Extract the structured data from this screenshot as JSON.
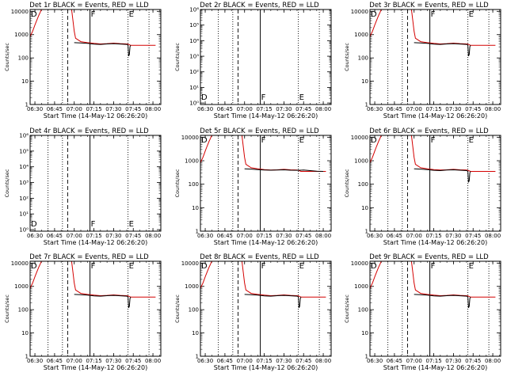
{
  "figure": {
    "xtick_labels": [
      "06:30",
      "06:45",
      "07:00",
      "07:15",
      "07:30",
      "07:45",
      "08:00"
    ],
    "xlabel": "Start Time (14-May-12 06:26:20)",
    "ylabel": "Counts/sec",
    "colors": {
      "events": "#000000",
      "lld": "#d40000"
    },
    "time_range": [
      "06:26:20",
      "08:06:00"
    ],
    "markers": {
      "dotted": [
        "06:40",
        "06:51",
        "07:41",
        "07:57"
      ],
      "dashed": [
        "06:55"
      ],
      "solid": [
        "07:12"
      ]
    }
  },
  "chart_data": [
    {
      "type": "line",
      "title": "Det 1r BLACK = Events, RED = LLD",
      "yscale": "log",
      "ylim": [
        1,
        12000
      ],
      "ytick_labels": [
        "1",
        "10",
        "100",
        "1000",
        "10000"
      ],
      "letters": [
        "D",
        "F",
        "E"
      ],
      "has_data": true,
      "series": [
        {
          "color": "#d40000",
          "x": [
            "06:26:20",
            "06:27",
            "06:28",
            "06:29",
            "06:30",
            "06:31",
            "06:32",
            "06:33",
            "06:34",
            "06:35",
            "06:36",
            "06:37",
            "06:38",
            "06:58",
            "06:59",
            "07:00",
            "07:01",
            "07:05",
            "07:10",
            "07:15",
            "07:20",
            "07:25",
            "07:30",
            "07:35",
            "07:40",
            "07:41:30",
            "07:43",
            "07:46",
            "07:50",
            "07:55",
            "08:00",
            "08:02"
          ],
          "y": [
            800,
            1000,
            1300,
            1800,
            2600,
            3600,
            5000,
            6800,
            9000,
            12000,
            12000,
            12000,
            12000,
            12000,
            4000,
            1400,
            700,
            500,
            450,
            420,
            400,
            410,
            430,
            410,
            400,
            380,
            350,
            350,
            350,
            350,
            350,
            350
          ]
        },
        {
          "color": "#000000",
          "x": [
            "07:00",
            "07:05",
            "07:10",
            "07:15",
            "07:20",
            "07:25",
            "07:30",
            "07:35",
            "07:40",
            "07:41",
            "07:41:30",
            "07:42",
            "07:42:30",
            "07:43"
          ],
          "y": [
            450,
            440,
            420,
            390,
            380,
            400,
            410,
            395,
            380,
            360,
            120,
            140,
            300,
            350
          ]
        }
      ]
    },
    {
      "type": "line",
      "title": "Det 2r BLACK = Events, RED = LLD",
      "yscale": "log",
      "ylim": [
        0.8,
        1000000
      ],
      "ytick_labels": [
        "10⁰",
        "10¹",
        "10²",
        "10³",
        "10⁴",
        "10⁵",
        "10⁶"
      ],
      "letters": [
        "D",
        "F",
        "E"
      ],
      "has_data": false,
      "series": []
    },
    {
      "type": "line",
      "title": "Det 3r BLACK = Events, RED = LLD",
      "yscale": "log",
      "ylim": [
        1,
        12000
      ],
      "ytick_labels": [
        "1",
        "10",
        "100",
        "1000",
        "10000"
      ],
      "letters": [
        "D",
        "F",
        "E"
      ],
      "has_data": true,
      "series": [
        {
          "color": "#d40000",
          "x": [
            "06:26:20",
            "06:27",
            "06:28",
            "06:29",
            "06:30",
            "06:31",
            "06:32",
            "06:33",
            "06:34",
            "06:35",
            "06:36",
            "06:37",
            "06:38",
            "06:58",
            "06:59",
            "07:00",
            "07:01",
            "07:05",
            "07:10",
            "07:15",
            "07:20",
            "07:25",
            "07:30",
            "07:35",
            "07:40",
            "07:41:30",
            "07:43",
            "07:46",
            "07:50",
            "07:55",
            "08:00",
            "08:02"
          ],
          "y": [
            800,
            1000,
            1300,
            1800,
            2600,
            3600,
            5000,
            6800,
            9000,
            12000,
            12000,
            12000,
            12000,
            12000,
            4000,
            1400,
            700,
            500,
            450,
            420,
            400,
            410,
            430,
            410,
            400,
            380,
            350,
            350,
            350,
            350,
            350,
            350
          ]
        },
        {
          "color": "#000000",
          "x": [
            "07:00",
            "07:05",
            "07:10",
            "07:15",
            "07:20",
            "07:25",
            "07:30",
            "07:35",
            "07:40",
            "07:41",
            "07:41:30",
            "07:42",
            "07:42:30",
            "07:43"
          ],
          "y": [
            450,
            440,
            420,
            390,
            380,
            400,
            410,
            395,
            380,
            360,
            120,
            140,
            300,
            350
          ]
        }
      ]
    },
    {
      "type": "line",
      "title": "Det 4r BLACK = Events, RED = LLD",
      "yscale": "log",
      "ylim": [
        0.8,
        1000000
      ],
      "ytick_labels": [
        "10⁰",
        "10¹",
        "10²",
        "10³",
        "10⁴",
        "10⁵",
        "10⁶"
      ],
      "letters": [
        "D",
        "F",
        "E"
      ],
      "has_data": false,
      "series": []
    },
    {
      "type": "line",
      "title": "Det 5r BLACK = Events, RED = LLD",
      "yscale": "log",
      "ylim": [
        1,
        12000
      ],
      "ytick_labels": [
        "1",
        "10",
        "100",
        "1000",
        "10000"
      ],
      "letters": [
        "D",
        "F",
        "E"
      ],
      "has_data": true,
      "series": [
        {
          "color": "#d40000",
          "x": [
            "06:26:20",
            "06:27",
            "06:28",
            "06:29",
            "06:30",
            "06:31",
            "06:32",
            "06:33",
            "06:34",
            "06:35",
            "06:36",
            "06:37",
            "06:38",
            "06:58",
            "06:59",
            "07:00",
            "07:01",
            "07:05",
            "07:10",
            "07:15",
            "07:20",
            "07:25",
            "07:30",
            "07:35",
            "07:40",
            "07:41:30",
            "07:43",
            "07:46",
            "07:50",
            "07:55",
            "08:00",
            "08:02"
          ],
          "y": [
            800,
            1000,
            1300,
            1800,
            2600,
            3600,
            5000,
            6800,
            9000,
            12000,
            12000,
            12000,
            12000,
            12000,
            4000,
            1400,
            700,
            500,
            450,
            420,
            400,
            410,
            430,
            410,
            400,
            380,
            350,
            350,
            350,
            350,
            350,
            350
          ]
        },
        {
          "color": "#000000",
          "x": [
            "07:00",
            "07:05",
            "07:10",
            "07:15",
            "07:20",
            "07:25",
            "07:30",
            "07:35",
            "07:40",
            "07:45",
            "07:50",
            "07:55",
            "08:00"
          ],
          "y": [
            450,
            440,
            420,
            400,
            395,
            400,
            410,
            395,
            390,
            400,
            380,
            360,
            350
          ]
        }
      ]
    },
    {
      "type": "line",
      "title": "Det 6r BLACK = Events, RED = LLD",
      "yscale": "log",
      "ylim": [
        1,
        12000
      ],
      "ytick_labels": [
        "1",
        "10",
        "100",
        "1000",
        "10000"
      ],
      "letters": [
        "D",
        "F",
        "E"
      ],
      "has_data": true,
      "series": [
        {
          "color": "#d40000",
          "x": [
            "06:26:20",
            "06:27",
            "06:28",
            "06:29",
            "06:30",
            "06:31",
            "06:32",
            "06:33",
            "06:34",
            "06:35",
            "06:36",
            "06:37",
            "06:38",
            "06:58",
            "06:59",
            "07:00",
            "07:01",
            "07:05",
            "07:10",
            "07:15",
            "07:20",
            "07:25",
            "07:30",
            "07:35",
            "07:40",
            "07:41:30",
            "07:43",
            "07:46",
            "07:50",
            "07:55",
            "08:00",
            "08:02"
          ],
          "y": [
            800,
            1000,
            1300,
            1800,
            2600,
            3600,
            5000,
            6800,
            9000,
            12000,
            12000,
            12000,
            12000,
            12000,
            4000,
            1400,
            700,
            500,
            450,
            420,
            400,
            410,
            430,
            410,
            400,
            380,
            350,
            350,
            350,
            350,
            350,
            350
          ]
        },
        {
          "color": "#000000",
          "x": [
            "07:00",
            "07:05",
            "07:10",
            "07:15",
            "07:20",
            "07:25",
            "07:30",
            "07:35",
            "07:40",
            "07:41",
            "07:41:30",
            "07:42",
            "07:42:30",
            "07:43"
          ],
          "y": [
            450,
            440,
            420,
            390,
            380,
            400,
            410,
            395,
            380,
            360,
            120,
            140,
            300,
            350
          ]
        }
      ]
    },
    {
      "type": "line",
      "title": "Det 7r BLACK = Events, RED = LLD",
      "yscale": "log",
      "ylim": [
        1,
        12000
      ],
      "ytick_labels": [
        "1",
        "10",
        "100",
        "1000",
        "10000"
      ],
      "letters": [
        "D",
        "F",
        "E"
      ],
      "has_data": true,
      "series": [
        {
          "color": "#d40000",
          "x": [
            "06:26:20",
            "06:27",
            "06:28",
            "06:29",
            "06:30",
            "06:31",
            "06:32",
            "06:33",
            "06:34",
            "06:35",
            "06:36",
            "06:37",
            "06:38",
            "06:58",
            "06:59",
            "07:00",
            "07:01",
            "07:05",
            "07:10",
            "07:15",
            "07:20",
            "07:25",
            "07:30",
            "07:35",
            "07:40",
            "07:41:30",
            "07:43",
            "07:46",
            "07:50",
            "07:55",
            "08:00",
            "08:02"
          ],
          "y": [
            800,
            1000,
            1300,
            1800,
            2600,
            3600,
            5000,
            6800,
            9000,
            12000,
            12000,
            12000,
            12000,
            12000,
            4000,
            1400,
            700,
            500,
            450,
            420,
            400,
            410,
            430,
            410,
            400,
            380,
            350,
            350,
            350,
            350,
            350,
            350
          ]
        },
        {
          "color": "#000000",
          "x": [
            "07:00",
            "07:05",
            "07:10",
            "07:15",
            "07:20",
            "07:25",
            "07:30",
            "07:35",
            "07:40",
            "07:41",
            "07:41:30",
            "07:42",
            "07:42:30",
            "07:43"
          ],
          "y": [
            450,
            440,
            420,
            390,
            380,
            400,
            410,
            395,
            380,
            360,
            120,
            140,
            300,
            350
          ]
        }
      ]
    },
    {
      "type": "line",
      "title": "Det 8r BLACK = Events, RED = LLD",
      "yscale": "log",
      "ylim": [
        1,
        12000
      ],
      "ytick_labels": [
        "1",
        "10",
        "100",
        "1000",
        "10000"
      ],
      "letters": [
        "D",
        "F",
        "E"
      ],
      "has_data": true,
      "series": [
        {
          "color": "#d40000",
          "x": [
            "06:26:20",
            "06:27",
            "06:28",
            "06:29",
            "06:30",
            "06:31",
            "06:32",
            "06:33",
            "06:34",
            "06:35",
            "06:36",
            "06:37",
            "06:38",
            "06:58",
            "06:59",
            "07:00",
            "07:01",
            "07:05",
            "07:10",
            "07:15",
            "07:20",
            "07:25",
            "07:30",
            "07:35",
            "07:40",
            "07:41:30",
            "07:43",
            "07:46",
            "07:50",
            "07:55",
            "08:00",
            "08:02"
          ],
          "y": [
            800,
            1000,
            1300,
            1800,
            2600,
            3600,
            5000,
            6800,
            9000,
            12000,
            12000,
            12000,
            12000,
            12000,
            4000,
            1400,
            700,
            500,
            450,
            420,
            400,
            410,
            430,
            410,
            400,
            380,
            350,
            350,
            350,
            350,
            350,
            350
          ]
        },
        {
          "color": "#000000",
          "x": [
            "07:00",
            "07:05",
            "07:10",
            "07:15",
            "07:20",
            "07:25",
            "07:30",
            "07:35",
            "07:40",
            "07:41",
            "07:41:30",
            "07:42",
            "07:42:30",
            "07:43"
          ],
          "y": [
            450,
            440,
            420,
            390,
            380,
            400,
            410,
            395,
            380,
            360,
            120,
            140,
            300,
            350
          ]
        }
      ]
    },
    {
      "type": "line",
      "title": "Det 9r BLACK = Events, RED = LLD",
      "yscale": "log",
      "ylim": [
        1,
        12000
      ],
      "ytick_labels": [
        "1",
        "10",
        "100",
        "1000",
        "10000"
      ],
      "letters": [
        "D",
        "F",
        "E"
      ],
      "has_data": true,
      "series": [
        {
          "color": "#d40000",
          "x": [
            "06:26:20",
            "06:27",
            "06:28",
            "06:29",
            "06:30",
            "06:31",
            "06:32",
            "06:33",
            "06:34",
            "06:35",
            "06:36",
            "06:37",
            "06:38",
            "06:58",
            "06:59",
            "07:00",
            "07:01",
            "07:05",
            "07:10",
            "07:15",
            "07:20",
            "07:25",
            "07:30",
            "07:35",
            "07:40",
            "07:41:30",
            "07:43",
            "07:46",
            "07:50",
            "07:55",
            "08:00",
            "08:02"
          ],
          "y": [
            800,
            1000,
            1300,
            1800,
            2600,
            3600,
            5000,
            6800,
            9000,
            12000,
            12000,
            12000,
            12000,
            12000,
            4000,
            1400,
            700,
            500,
            450,
            420,
            400,
            410,
            430,
            410,
            400,
            380,
            350,
            350,
            350,
            350,
            350,
            350
          ]
        },
        {
          "color": "#000000",
          "x": [
            "07:00",
            "07:05",
            "07:10",
            "07:15",
            "07:20",
            "07:25",
            "07:30",
            "07:35",
            "07:40",
            "07:41",
            "07:41:30",
            "07:42",
            "07:42:30",
            "07:43"
          ],
          "y": [
            450,
            440,
            420,
            390,
            380,
            400,
            410,
            395,
            380,
            360,
            120,
            140,
            300,
            350
          ]
        }
      ]
    }
  ]
}
